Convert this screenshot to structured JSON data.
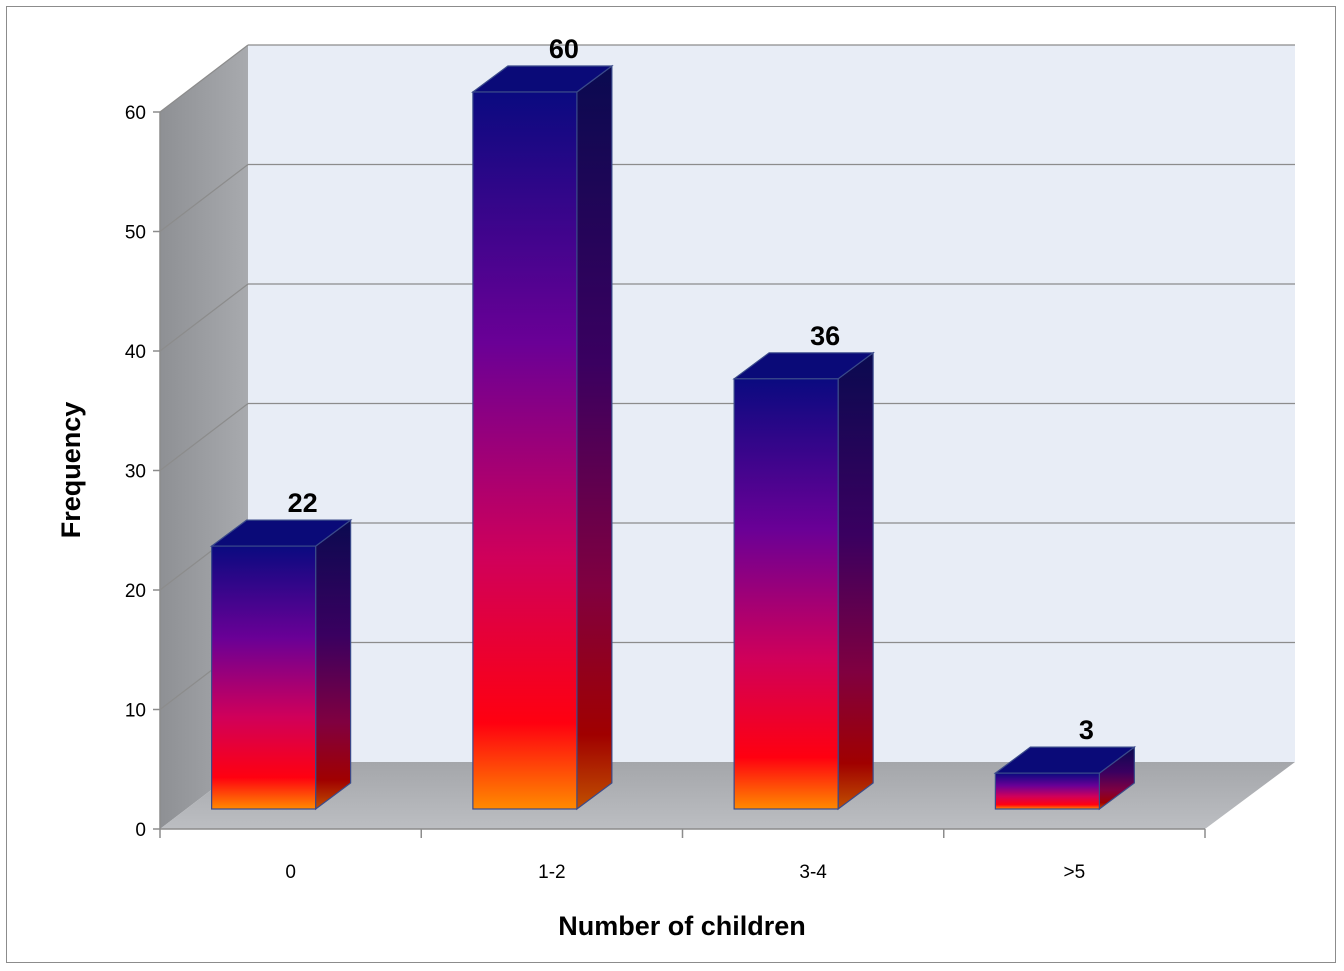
{
  "chart_data": {
    "type": "bar",
    "style": "3d-column",
    "categories": [
      "0",
      "1-2",
      "3-4",
      ">5"
    ],
    "values": [
      22,
      60,
      36,
      3
    ],
    "data_labels": [
      "22",
      "60",
      "36",
      "3"
    ],
    "title": "",
    "xlabel": "Number of children",
    "ylabel": "Frequency",
    "ylim": [
      0,
      60
    ],
    "y_ticks": [
      "0",
      "10",
      "20",
      "30",
      "40",
      "50",
      "60"
    ],
    "grid": true,
    "legend": "none",
    "colors": {
      "bar_top": "#0a0a78",
      "bar_mid": "#6a0096",
      "bar_low": "#d0005a",
      "bar_red": "#ff0000",
      "bar_bottom": "#ff8000",
      "back_wall": "#e8edf6",
      "side_wall": "#9a9a9a",
      "floor": "#b4b4b4"
    }
  }
}
